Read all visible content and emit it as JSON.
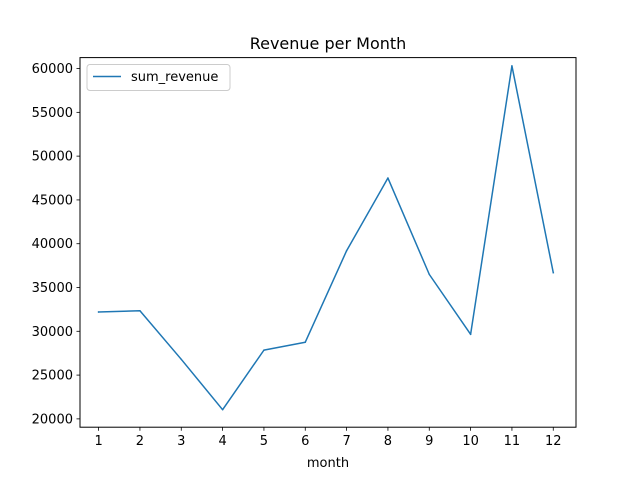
{
  "chart_data": {
    "type": "line",
    "title": "Revenue per Month",
    "xlabel": "month",
    "ylabel": "",
    "x": [
      1,
      2,
      3,
      4,
      5,
      6,
      7,
      8,
      9,
      10,
      11,
      12
    ],
    "xticks": [
      "1",
      "2",
      "3",
      "4",
      "5",
      "6",
      "7",
      "8",
      "9",
      "10",
      "11",
      "12"
    ],
    "yticks": [
      20000,
      25000,
      30000,
      35000,
      40000,
      45000,
      50000,
      55000,
      60000
    ],
    "xlim": [
      0.55,
      12.55
    ],
    "ylim": [
      19050,
      61250
    ],
    "grid": false,
    "legend_position": "upper left",
    "series": [
      {
        "name": "sum_revenue",
        "color": "#1f77b4",
        "values": [
          32200,
          32350,
          26800,
          21050,
          27850,
          28750,
          39200,
          47500,
          36500,
          29650,
          60300,
          36700
        ]
      }
    ]
  }
}
